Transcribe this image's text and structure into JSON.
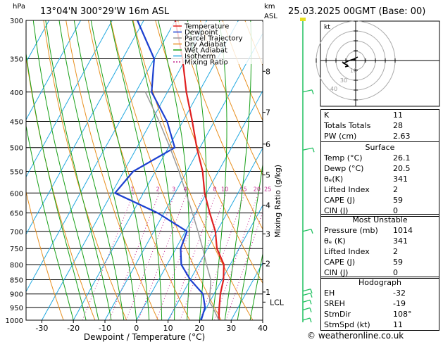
{
  "header": {
    "pressure_unit": "hPa",
    "location": "13°04'N  300°29'W  16m  ASL",
    "km_label": "km",
    "asl_label": "ASL",
    "date": "25.03.2025  00GMT  (Base: 00)"
  },
  "chart_data": {
    "type": "line",
    "title": "13°04'N  300°29'W  16m  ASL",
    "xlabel": "Dewpoint / Temperature (°C)",
    "ylabel": "hPa",
    "y2label": "Mixing Ratio (g/kg)",
    "xlim": [
      -35,
      40
    ],
    "ylim": [
      1000,
      300
    ],
    "x_ticks": [
      -30,
      -20,
      -10,
      0,
      10,
      20,
      30,
      40
    ],
    "pressure_levels": [
      300,
      350,
      400,
      450,
      500,
      550,
      600,
      650,
      700,
      750,
      800,
      850,
      900,
      950,
      1000
    ],
    "km_ticks": [
      {
        "label": "8",
        "p": 368
      },
      {
        "label": "7",
        "p": 434
      },
      {
        "label": "6",
        "p": 493
      },
      {
        "label": "5",
        "p": 558
      },
      {
        "label": "4",
        "p": 630
      },
      {
        "label": "3",
        "p": 707
      },
      {
        "label": "2",
        "p": 797
      },
      {
        "label": "1",
        "p": 893
      },
      {
        "label": "LCL",
        "p": 930
      }
    ],
    "mixing_ratio_labels": [
      "1",
      "2",
      "3",
      "4",
      "8",
      "10",
      "15",
      "20",
      "25"
    ],
    "mixing_ratio_gkg": [
      1,
      2,
      3,
      4,
      6,
      8,
      10,
      15,
      20,
      25
    ],
    "series": [
      {
        "name": "Temperature",
        "color": "#e02020",
        "x": [
          26.1,
          24,
          22,
          20.5,
          18,
          13,
          9.5,
          4.5,
          -0.6,
          -5,
          -11,
          -17,
          -24,
          -31,
          -40
        ],
        "p": [
          1000,
          950,
          900,
          850,
          800,
          750,
          700,
          650,
          600,
          550,
          500,
          450,
          400,
          350,
          300
        ]
      },
      {
        "name": "Dewpoint",
        "color": "#1c40d0",
        "x": [
          20.5,
          19.5,
          16.5,
          10,
          4.5,
          1.5,
          0.5,
          -12,
          -29,
          -27,
          -18,
          -25,
          -35,
          -40,
          -52
        ],
        "p": [
          1000,
          950,
          900,
          850,
          800,
          750,
          700,
          650,
          600,
          550,
          500,
          450,
          400,
          350,
          300
        ]
      },
      {
        "name": "Parcel Trajectory",
        "color": "#999999",
        "x": [
          26.1,
          22,
          20,
          16.5,
          12.5,
          8.5,
          4,
          -1,
          -6.5,
          -12.5,
          -19.5,
          -27.5,
          -37
        ],
        "p": [
          1000,
          950,
          930,
          850,
          800,
          750,
          700,
          650,
          600,
          550,
          500,
          450,
          400
        ]
      }
    ],
    "legend_position": "top-left",
    "grid": true
  },
  "legend": [
    {
      "label": "Temperature",
      "color": "#e02020",
      "dash": ""
    },
    {
      "label": "Dewpoint",
      "color": "#1c40d0",
      "dash": ""
    },
    {
      "label": "Parcel Trajectory",
      "color": "#999999",
      "dash": ""
    },
    {
      "label": "Dry Adiabat",
      "color": "#e89020",
      "dash": ""
    },
    {
      "label": "Wet Adiabat",
      "color": "#18a018",
      "dash": ""
    },
    {
      "label": "Isotherm",
      "color": "#20a8e0",
      "dash": ""
    },
    {
      "label": "Mixing Ratio",
      "color": "#c0208c",
      "dash": "2,2"
    }
  ],
  "colors": {
    "isotherm": "#20a8e0",
    "dry_adiabat": "#e89020",
    "wet_adiabat": "#18a018",
    "mixing_ratio": "#c0208c",
    "wind_barb": "#20c060"
  },
  "hodograph": {
    "label": "kt",
    "ring_labels": [
      "10",
      "30",
      "40"
    ]
  },
  "indices": {
    "rows": [
      {
        "k": "K",
        "v": "11"
      },
      {
        "k": "Totals Totals",
        "v": "28"
      },
      {
        "k": "PW (cm)",
        "v": "2.63"
      }
    ]
  },
  "surface": {
    "title": "Surface",
    "rows": [
      {
        "k": "Temp (°C)",
        "v": "26.1"
      },
      {
        "k": "Dewp (°C)",
        "v": "20.5"
      },
      {
        "k": "θₑ(K)",
        "v": "341"
      },
      {
        "k": "Lifted Index",
        "v": "2"
      },
      {
        "k": "CAPE (J)",
        "v": "59"
      },
      {
        "k": "CIN (J)",
        "v": "0"
      }
    ]
  },
  "most_unstable": {
    "title": "Most Unstable",
    "rows": [
      {
        "k": "Pressure (mb)",
        "v": "1014"
      },
      {
        "k": "θₑ (K)",
        "v": "341"
      },
      {
        "k": "Lifted Index",
        "v": "2"
      },
      {
        "k": "CAPE (J)",
        "v": "59"
      },
      {
        "k": "CIN (J)",
        "v": "0"
      }
    ]
  },
  "hodograph_table": {
    "title": "Hodograph",
    "rows": [
      {
        "k": "EH",
        "v": "-32"
      },
      {
        "k": "SREH",
        "v": "-19"
      },
      {
        "k": "StmDir",
        "v": "108°"
      },
      {
        "k": "StmSpd (kt)",
        "v": "11"
      }
    ]
  },
  "footer": "© weatheronline.co.uk"
}
